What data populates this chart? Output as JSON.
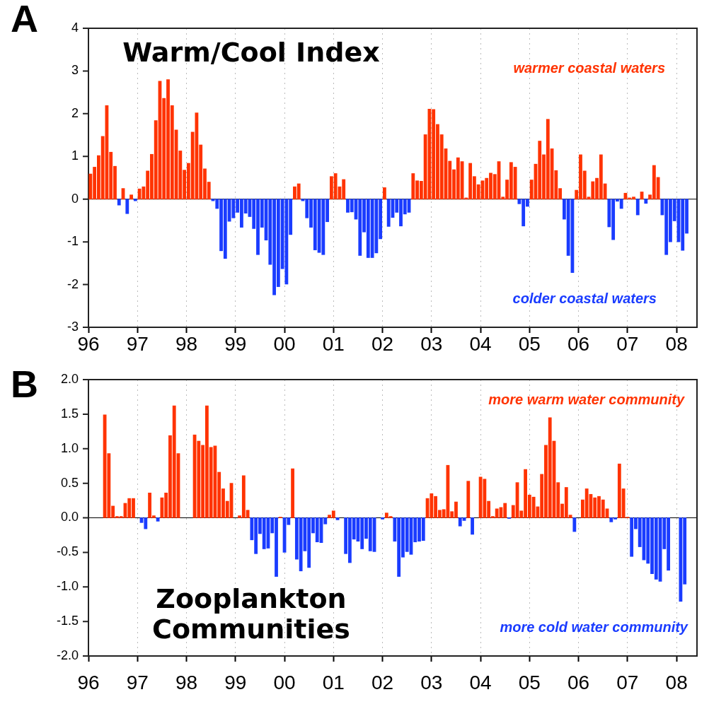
{
  "chart_data": [
    {
      "type": "bar",
      "title": "Warm/Cool Index",
      "annotations": [
        "A",
        "warmer coastal waters",
        "colder coastal waters"
      ],
      "x": [
        "1996-01-16",
        "1996-02-16",
        "1996-03-16",
        "1996-04-16",
        "1996-05-16",
        "1996-06-16",
        "1996-07-16",
        "1996-08-16",
        "1996-09-16",
        "1996-10-16",
        "1996-11-16",
        "1996-12-16",
        "1997-01-16",
        "1997-02-16",
        "1997-03-16",
        "1997-04-16",
        "1997-05-16",
        "1997-06-16",
        "1997-07-16",
        "1997-08-16",
        "1997-09-16",
        "1997-10-16",
        "1997-11-16",
        "1997-12-16",
        "1998-01-16",
        "1998-02-16",
        "1998-03-16",
        "1998-04-16",
        "1998-05-16",
        "1998-06-16",
        "1998-07-16",
        "1998-08-16",
        "1998-09-16",
        "1998-10-16",
        "1998-11-16",
        "1998-12-16",
        "1999-01-16",
        "1999-02-16",
        "1999-03-16",
        "1999-04-16",
        "1999-05-16",
        "1999-06-16",
        "1999-07-16",
        "1999-08-16",
        "1999-09-16",
        "1999-10-16",
        "1999-11-16",
        "1999-12-16",
        "2000-01-16",
        "2000-02-16",
        "2000-03-16",
        "2000-04-16",
        "2000-05-16",
        "2000-06-16",
        "2000-07-16",
        "2000-08-16",
        "2000-09-16",
        "2000-10-16",
        "2000-11-16",
        "2000-12-16",
        "2001-01-16",
        "2001-02-16",
        "2001-03-16",
        "2001-04-16",
        "2001-05-16",
        "2001-06-16",
        "2001-07-16",
        "2001-08-16",
        "2001-09-16",
        "2001-10-16",
        "2001-11-16",
        "2001-12-16",
        "2002-01-16",
        "2002-02-16",
        "2002-03-16",
        "2002-04-16",
        "2002-05-16",
        "2002-06-16",
        "2002-07-16",
        "2002-08-16",
        "2002-09-16",
        "2002-10-16",
        "2002-11-16",
        "2002-12-16",
        "2003-01-16",
        "2003-02-16",
        "2003-03-16",
        "2003-04-16",
        "2003-05-16",
        "2003-06-16",
        "2003-07-16",
        "2003-08-16",
        "2003-09-16",
        "2003-10-16",
        "2003-11-16",
        "2003-12-16",
        "2004-01-16",
        "2004-02-16",
        "2004-03-16",
        "2004-04-16",
        "2004-05-16",
        "2004-06-16",
        "2004-07-16",
        "2004-08-16",
        "2004-09-16",
        "2004-10-16",
        "2004-11-16",
        "2004-12-16",
        "2005-01-16",
        "2005-02-16",
        "2005-03-16",
        "2005-04-16",
        "2005-05-16",
        "2005-06-16",
        "2005-07-16",
        "2005-08-16",
        "2005-09-16",
        "2005-10-16",
        "2005-11-16",
        "2005-12-16",
        "2006-01-16",
        "2006-02-16",
        "2006-03-16",
        "2006-04-16",
        "2006-05-16",
        "2006-06-16",
        "2006-07-16",
        "2006-08-16",
        "2006-09-16",
        "2006-10-16",
        "2006-11-16",
        "2006-12-16",
        "2007-01-16",
        "2007-02-16",
        "2007-03-16",
        "2007-04-16",
        "2007-05-16",
        "2007-06-16",
        "2007-07-16",
        "2007-08-16",
        "2007-09-16",
        "2007-10-16",
        "2007-11-16",
        "2007-12-16",
        "2008-01-16",
        "2008-02-16",
        "2008-03-16"
      ],
      "series": [
        {
          "color": "#ff3300",
          "values": [
            0.59,
            0.75,
            1.02,
            1.47,
            2.19,
            1.1,
            0.77,
            null,
            0.25,
            null,
            0.1,
            null,
            0.24,
            0.29,
            0.66,
            1.05,
            1.84,
            2.76,
            2.36,
            2.8,
            2.19,
            1.62,
            1.13,
            0.68,
            0.84,
            1.57,
            2.02,
            1.27,
            0.71,
            0.4,
            null,
            null,
            null,
            null,
            null,
            null,
            null,
            null,
            null,
            null,
            null,
            null,
            null,
            null,
            null,
            null,
            null,
            null,
            null,
            null,
            0.29,
            0.36,
            null,
            null,
            null,
            null,
            null,
            null,
            null,
            0.53,
            0.6,
            0.29,
            0.46,
            null,
            null,
            null,
            null,
            null,
            null,
            null,
            null,
            null,
            0.27,
            null,
            null,
            null,
            null,
            null,
            null,
            0.6,
            0.43,
            0.42,
            1.51,
            2.11,
            2.1,
            1.75,
            1.51,
            1.18,
            0.89,
            0.69,
            0.97,
            0.88,
            0.03,
            0.84,
            0.53,
            0.34,
            0.43,
            0.49,
            0.61,
            0.58,
            0.88,
            0.05,
            0.45,
            0.86,
            0.75,
            null,
            null,
            null,
            0.45,
            0.82,
            1.36,
            1.04,
            1.87,
            1.18,
            0.67,
            0.25,
            null,
            null,
            null,
            0.21,
            1.04,
            0.66,
            0.05,
            0.41,
            0.49,
            1.04,
            0.36,
            null,
            null,
            null,
            null,
            0.14,
            0.03,
            0.05,
            null,
            0.17,
            null,
            0.1,
            0.79,
            0.51,
            null,
            null,
            null,
            null,
            null,
            null,
            null
          ]
        },
        {
          "color": "#1a3cff",
          "values": [
            null,
            null,
            null,
            null,
            null,
            null,
            null,
            -0.14,
            null,
            -0.34,
            null,
            -0.04,
            null,
            null,
            null,
            null,
            null,
            null,
            null,
            null,
            null,
            null,
            null,
            null,
            null,
            null,
            null,
            null,
            null,
            null,
            -0.04,
            -0.22,
            -1.21,
            -1.39,
            -0.52,
            -0.44,
            -0.31,
            -0.66,
            -0.33,
            -0.41,
            -0.69,
            -1.3,
            -0.66,
            -0.96,
            -1.53,
            -2.24,
            -2.05,
            -1.63,
            -1.99,
            -0.83,
            null,
            null,
            -0.04,
            -0.44,
            -0.66,
            -1.19,
            -1.25,
            -1.3,
            -0.53,
            null,
            null,
            null,
            null,
            -0.31,
            -0.3,
            -0.47,
            -1.32,
            -0.77,
            -1.37,
            -1.37,
            -1.26,
            -0.93,
            null,
            -0.64,
            -0.43,
            -0.31,
            -0.63,
            -0.35,
            -0.31,
            null,
            null,
            null,
            null,
            null,
            null,
            null,
            null,
            null,
            null,
            null,
            null,
            null,
            null,
            null,
            null,
            null,
            null,
            null,
            null,
            null,
            null,
            null,
            null,
            null,
            null,
            -0.11,
            -0.63,
            -0.17,
            null,
            null,
            null,
            null,
            null,
            null,
            null,
            null,
            -0.47,
            -1.32,
            -1.72,
            null,
            null,
            null,
            null,
            null,
            null,
            null,
            null,
            -0.65,
            -0.95,
            -0.05,
            -0.22,
            null,
            null,
            null,
            -0.37,
            null,
            -0.1,
            null,
            null,
            null,
            -0.37,
            -1.3,
            -1.0,
            -0.51,
            -1.0,
            -1.2,
            -0.8
          ]
        }
      ],
      "xlim": [
        "1996-01-01",
        "2008-06-01"
      ],
      "xticks": [
        {
          "value": "1996-01-01",
          "label": "96"
        },
        {
          "value": "1997-01-01",
          "label": "97"
        },
        {
          "value": "1998-01-01",
          "label": "98"
        },
        {
          "value": "1999-01-01",
          "label": "99"
        },
        {
          "value": "2000-01-01",
          "label": "00"
        },
        {
          "value": "2001-01-01",
          "label": "01"
        },
        {
          "value": "2002-01-01",
          "label": "02"
        },
        {
          "value": "2003-01-01",
          "label": "03"
        },
        {
          "value": "2004-01-01",
          "label": "04"
        },
        {
          "value": "2005-01-01",
          "label": "05"
        },
        {
          "value": "2006-01-01",
          "label": "06"
        },
        {
          "value": "2007-01-01",
          "label": "07"
        },
        {
          "value": "2008-01-01",
          "label": "08"
        }
      ],
      "ylim": [
        -3,
        4
      ],
      "yticks": [
        -3,
        -2,
        -1,
        0,
        1,
        2,
        3,
        4
      ],
      "grid": "x",
      "ref_lines": [
        {
          "axis": "y",
          "value": 0,
          "color": "#000000"
        }
      ]
    },
    {
      "type": "bar",
      "title": "Zooplankton Communities",
      "annotations": [
        "B",
        "more warm water community",
        "more cold water community"
      ],
      "x": [
        "1996-05-01",
        "1996-06-01",
        "1996-07-01",
        "1996-08-01",
        "1996-09-01",
        "1996-10-01",
        "1996-11-01",
        "1996-12-01",
        "1997-01-01",
        "1997-02-01",
        "1997-03-01",
        "1997-04-01",
        "1997-05-01",
        "1997-06-01",
        "1997-07-01",
        "1997-08-01",
        "1997-09-01",
        "1997-10-01",
        "1997-11-01",
        "1997-12-01",
        "1998-01-01",
        "1998-02-01",
        "1998-03-01",
        "1998-04-01",
        "1998-05-01",
        "1998-06-01",
        "1998-07-01",
        "1998-08-01",
        "1998-09-01",
        "1998-10-01",
        "1998-11-01",
        "1998-12-01",
        "1999-01-01",
        "1999-02-01",
        "1999-03-01",
        "1999-04-01",
        "1999-05-01",
        "1999-06-01",
        "1999-07-01",
        "1999-08-01",
        "1999-09-01",
        "1999-10-01",
        "1999-11-01",
        "1999-12-01",
        "2000-01-01",
        "2000-02-01",
        "2000-03-01",
        "2000-04-01",
        "2000-05-01",
        "2000-06-01",
        "2000-07-01",
        "2000-08-01",
        "2000-09-01",
        "2000-10-01",
        "2000-11-01",
        "2000-12-01",
        "2001-01-01",
        "2001-02-01",
        "2001-03-01",
        "2001-04-01",
        "2001-05-01",
        "2001-06-01",
        "2001-07-01",
        "2001-08-01",
        "2001-09-01",
        "2001-10-01",
        "2001-11-01",
        "2001-12-01",
        "2002-01-01",
        "2002-02-01",
        "2002-03-01",
        "2002-04-01",
        "2002-05-01",
        "2002-06-01",
        "2002-07-01",
        "2002-08-01",
        "2002-09-01",
        "2002-10-01",
        "2002-11-01",
        "2002-12-01",
        "2003-01-01",
        "2003-02-01",
        "2003-03-01",
        "2003-04-01",
        "2003-05-01",
        "2003-06-01",
        "2003-07-01",
        "2003-08-01",
        "2003-09-01",
        "2003-10-01",
        "2003-11-01",
        "2003-12-01",
        "2004-01-01",
        "2004-02-01",
        "2004-03-01",
        "2004-04-01",
        "2004-05-01",
        "2004-06-01",
        "2004-07-01",
        "2004-08-01",
        "2004-09-01",
        "2004-10-01",
        "2004-11-01",
        "2004-12-01",
        "2005-01-01",
        "2005-02-01",
        "2005-03-01",
        "2005-04-01",
        "2005-05-01",
        "2005-06-01",
        "2005-07-01",
        "2005-08-01",
        "2005-09-01",
        "2005-10-01",
        "2005-11-01",
        "2005-12-01",
        "2006-01-01",
        "2006-02-01",
        "2006-03-01",
        "2006-04-01",
        "2006-05-01",
        "2006-06-01",
        "2006-07-01",
        "2006-08-01",
        "2006-09-01",
        "2006-10-01",
        "2006-11-01",
        "2006-12-01",
        "2007-01-01",
        "2007-02-01",
        "2007-03-01",
        "2007-04-01",
        "2007-05-01",
        "2007-06-01",
        "2007-07-01",
        "2007-08-01",
        "2007-09-01",
        "2007-10-01",
        "2007-11-01",
        "2007-12-01",
        "2008-01-01",
        "2008-02-01",
        "2008-03-01"
      ],
      "series": [
        {
          "color": "#ff3300",
          "values": [
            1.49,
            0.93,
            0.17,
            0.02,
            0.02,
            0.21,
            0.28,
            0.28,
            null,
            null,
            null,
            0.36,
            0.03,
            null,
            0.29,
            0.36,
            1.19,
            1.62,
            0.93,
            null,
            null,
            null,
            1.2,
            1.11,
            1.05,
            1.62,
            1.02,
            1.04,
            0.66,
            0.42,
            0.24,
            0.5,
            null,
            0.03,
            0.61,
            0.11,
            null,
            null,
            null,
            null,
            null,
            null,
            null,
            0.01,
            null,
            null,
            0.71,
            null,
            null,
            null,
            null,
            null,
            null,
            null,
            null,
            0.04,
            0.1,
            null,
            null,
            null,
            null,
            null,
            null,
            null,
            null,
            null,
            null,
            null,
            null,
            0.07,
            0.02,
            null,
            null,
            null,
            null,
            null,
            null,
            null,
            null,
            0.28,
            0.35,
            0.31,
            0.11,
            0.12,
            0.76,
            0.09,
            0.23,
            null,
            null,
            0.53,
            null,
            null,
            0.59,
            0.56,
            0.24,
            0.02,
            0.13,
            0.15,
            0.21,
            null,
            0.18,
            0.51,
            0.1,
            0.7,
            0.33,
            0.3,
            0.16,
            0.63,
            1.05,
            1.45,
            1.11,
            0.51,
            0.2,
            0.44,
            0.04,
            null,
            null,
            0.26,
            0.42,
            0.34,
            0.29,
            0.31,
            0.26,
            0.13,
            null,
            null,
            0.78,
            0.42,
            0.01,
            null,
            null,
            null,
            null,
            null,
            null,
            null,
            null,
            null,
            null,
            null,
            null,
            null,
            null
          ]
        },
        {
          "color": "#1a3cff",
          "values": [
            null,
            null,
            null,
            null,
            null,
            null,
            null,
            null,
            null,
            -0.07,
            -0.16,
            null,
            null,
            -0.05,
            null,
            null,
            null,
            null,
            null,
            null,
            null,
            null,
            null,
            null,
            null,
            null,
            null,
            null,
            null,
            null,
            null,
            null,
            null,
            null,
            null,
            null,
            -0.32,
            -0.52,
            -0.23,
            -0.45,
            -0.44,
            -0.22,
            -0.85,
            null,
            -0.5,
            -0.1,
            null,
            -0.6,
            -0.77,
            -0.48,
            -0.72,
            -0.22,
            -0.35,
            -0.36,
            -0.09,
            null,
            null,
            -0.03,
            null,
            -0.52,
            -0.65,
            -0.31,
            -0.34,
            -0.45,
            -0.3,
            -0.48,
            -0.49,
            null,
            -0.02,
            null,
            null,
            -0.34,
            -0.85,
            -0.57,
            -0.49,
            -0.53,
            -0.35,
            -0.34,
            -0.33,
            null,
            null,
            null,
            null,
            null,
            null,
            null,
            null,
            -0.12,
            -0.04,
            null,
            -0.24,
            null,
            null,
            null,
            null,
            null,
            null,
            null,
            null,
            -0.01,
            null,
            null,
            null,
            null,
            null,
            null,
            null,
            null,
            null,
            null,
            null,
            null,
            null,
            null,
            null,
            -0.2,
            null,
            null,
            null,
            null,
            null,
            null,
            null,
            null,
            -0.06,
            -0.02,
            null,
            null,
            null,
            -0.56,
            -0.16,
            -0.42,
            -0.61,
            -0.66,
            -0.81,
            -0.89,
            -0.92,
            -0.45,
            -0.76,
            null,
            null,
            -1.21,
            -0.96
          ]
        }
      ],
      "xlim": [
        "1996-01-01",
        "2008-06-01"
      ],
      "xticks": [
        {
          "value": "1996-01-01",
          "label": "96"
        },
        {
          "value": "1997-01-01",
          "label": "97"
        },
        {
          "value": "1998-01-01",
          "label": "98"
        },
        {
          "value": "1999-01-01",
          "label": "99"
        },
        {
          "value": "2000-01-01",
          "label": "00"
        },
        {
          "value": "2001-01-01",
          "label": "01"
        },
        {
          "value": "2002-01-01",
          "label": "02"
        },
        {
          "value": "2003-01-01",
          "label": "03"
        },
        {
          "value": "2004-01-01",
          "label": "04"
        },
        {
          "value": "2005-01-01",
          "label": "05"
        },
        {
          "value": "2006-01-01",
          "label": "06"
        },
        {
          "value": "2007-01-01",
          "label": "07"
        },
        {
          "value": "2008-01-01",
          "label": "08"
        }
      ],
      "ylim": [
        -2,
        2
      ],
      "yticks": [
        {
          "value": -2,
          "label": "-2.0"
        },
        {
          "value": -1.5,
          "label": "-1.5"
        },
        {
          "value": -1,
          "label": "-1.0"
        },
        {
          "value": -0.5,
          "label": "-0.5"
        },
        {
          "value": 0,
          "label": "0.0"
        },
        {
          "value": 0.5,
          "label": "0.5"
        },
        {
          "value": 1,
          "label": "1.0"
        },
        {
          "value": 1.5,
          "label": "1.5"
        },
        {
          "value": 2,
          "label": "2.0"
        }
      ],
      "grid": "x",
      "ref_lines": [
        {
          "axis": "y",
          "value": 0,
          "color": "#000000"
        }
      ]
    }
  ]
}
